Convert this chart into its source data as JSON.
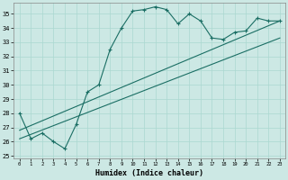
{
  "xlabel": "Humidex (Indice chaleur)",
  "background_color": "#cce8e4",
  "line_color": "#1a6e64",
  "grid_color": "#aad8d0",
  "xlim": [
    -0.5,
    23.5
  ],
  "ylim": [
    24.8,
    35.8
  ],
  "yticks": [
    25,
    26,
    27,
    28,
    29,
    30,
    31,
    32,
    33,
    34,
    35
  ],
  "xticks": [
    0,
    1,
    2,
    3,
    4,
    5,
    6,
    7,
    8,
    9,
    10,
    11,
    12,
    13,
    14,
    15,
    16,
    17,
    18,
    19,
    20,
    21,
    22,
    23
  ],
  "series1_x": [
    0,
    1,
    2,
    3,
    4,
    5,
    6,
    7,
    8,
    9,
    10,
    11,
    12,
    13,
    14,
    15,
    16,
    17,
    18,
    19,
    20,
    21,
    22,
    23
  ],
  "series1_y": [
    28.0,
    26.2,
    26.6,
    26.0,
    25.5,
    27.2,
    29.5,
    30.0,
    32.5,
    34.0,
    35.2,
    35.3,
    35.5,
    35.3,
    34.3,
    35.0,
    34.5,
    33.3,
    33.2,
    33.7,
    33.8,
    34.7,
    34.5,
    34.5
  ],
  "line2_x": [
    0,
    23
  ],
  "line2_y": [
    26.2,
    33.3
  ],
  "line3_x": [
    0,
    23
  ],
  "line3_y": [
    26.8,
    34.5
  ]
}
